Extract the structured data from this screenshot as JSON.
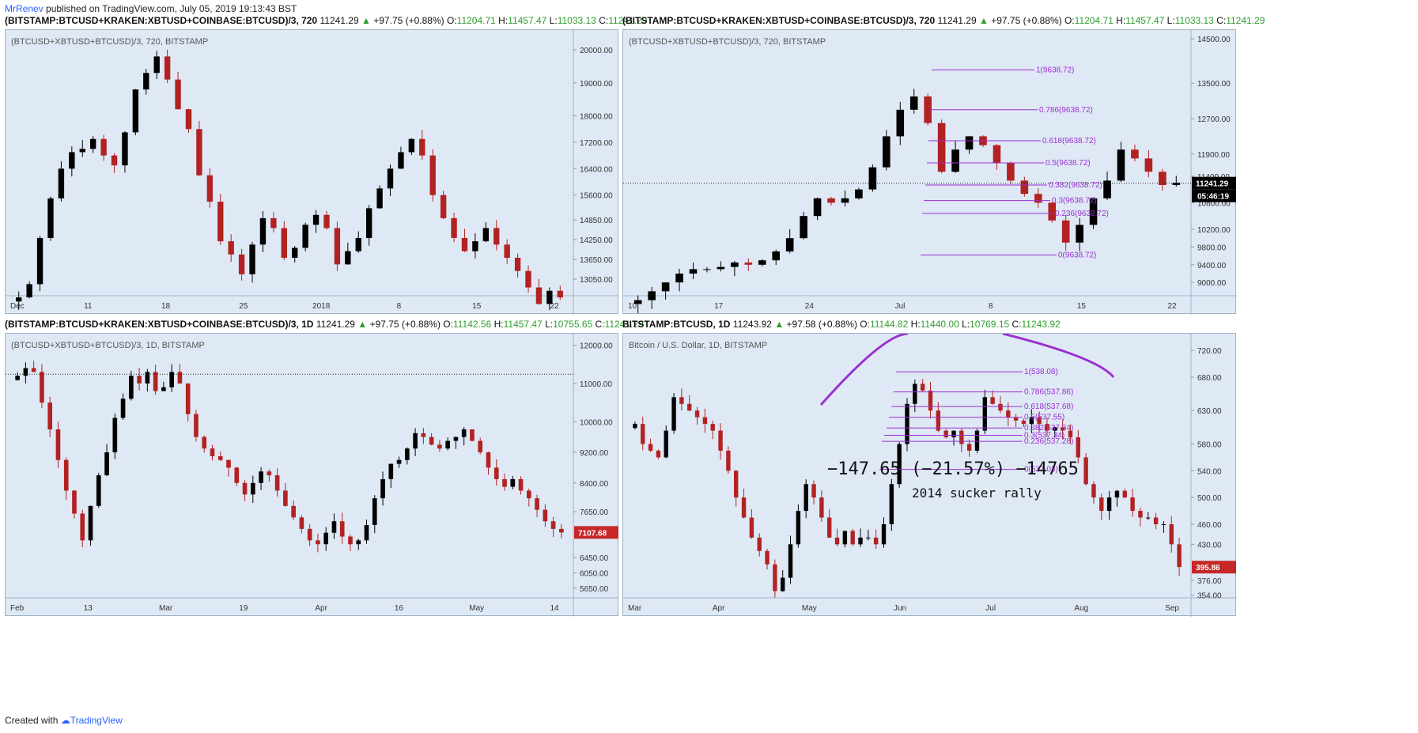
{
  "header": {
    "author": "MrRenev",
    "published": "published on TradingView.com, July 05, 2019 19:13:43 BST"
  },
  "footer": {
    "created_with": "Created with",
    "brand": "TradingView"
  },
  "colors": {
    "bg": "#dfe9f5",
    "up": "#000000",
    "down": "#b22222",
    "fib": "#9b30d0",
    "price_tag": "#000000",
    "price_tag_red": "#c62828",
    "ohlc_green": "#2e9e2e"
  },
  "panels": [
    {
      "symbol": "(BITSTAMP:BTCUSD+KRAKEN:XBTUSD+COINBASE:BTCUSD)/3, 720",
      "last": "11241.29",
      "change": "+97.75 (+0.88%)",
      "o": "11204.71",
      "h": "11457.47",
      "l": "11033.13",
      "c": "11241.29",
      "subtitle": "(BTCUSD+XBTUSD+BTCUSD)/3, 720, BITSTAMP"
    },
    {
      "symbol": "(BITSTAMP:BTCUSD+KRAKEN:XBTUSD+COINBASE:BTCUSD)/3, 720",
      "last": "11241.29",
      "change": "+97.75 (+0.88%)",
      "o": "11204.71",
      "h": "11457.47",
      "l": "11033.13",
      "c": "11241.29",
      "subtitle": "(BTCUSD+XBTUSD+BTCUSD)/3, 720, BITSTAMP",
      "price_tag": "11241.29",
      "countdown": "05:46:19"
    },
    {
      "symbol": "(BITSTAMP:BTCUSD+KRAKEN:XBTUSD+COINBASE:BTCUSD)/3, 1D",
      "last": "11241.29",
      "change": "+97.75 (+0.88%)",
      "o": "11142.56",
      "h": "11457.47",
      "l": "10755.65",
      "c": "11241.29",
      "subtitle": "(BTCUSD+XBTUSD+BTCUSD)/3, 1D, BITSTAMP",
      "price_tag": "7107.68"
    },
    {
      "symbol": "BITSTAMP:BTCUSD, 1D",
      "last": "11243.92",
      "change": "+97.58 (+0.88%)",
      "o": "11144.82",
      "h": "11440.00",
      "l": "10769.15",
      "c": "11243.92",
      "subtitle": "Bitcoin / U.S. Dollar, 1D, BITSTAMP",
      "price_tag": "395.86",
      "annotation_change": "−147.65 (−21.57%) −14765",
      "annotation_text": "2014 sucker rally"
    }
  ],
  "chart_data": [
    {
      "type": "candlestick",
      "ylim": [
        12550,
        20600
      ],
      "y_ticks": [
        "20000.00",
        "19000.00",
        "18000.00",
        "17200.00",
        "16400.00",
        "15600.00",
        "14850.00",
        "14250.00",
        "13650.00",
        "13050.00"
      ],
      "y_tick_values": [
        20000,
        19000,
        18000,
        17200,
        16400,
        15600,
        14850,
        14250,
        13650,
        13050
      ],
      "x_ticks": [
        "Dec",
        "11",
        "18",
        "25",
        "2018",
        "8",
        "15",
        "22"
      ],
      "series": [
        {
          "name": "",
          "values": [
            12500,
            12900,
            14300,
            15500,
            16400,
            16900,
            17000,
            17300,
            16800,
            16500,
            17500,
            18800,
            19300,
            19800,
            19100,
            18200,
            17600,
            16200,
            15400,
            14200,
            13800,
            13200,
            14100,
            14900,
            14600,
            13700,
            14000,
            14700,
            15000,
            14600,
            13500,
            13900,
            14300,
            15200,
            15800,
            16400,
            16900,
            17300,
            16800,
            15600,
            14900,
            14300,
            13900,
            14200,
            14600,
            14100,
            13700,
            13300,
            12800,
            12300,
            12700,
            12500
          ]
        }
      ]
    },
    {
      "type": "candlestick",
      "ylim": [
        8700,
        14700
      ],
      "y_ticks": [
        "14500.00",
        "13500.00",
        "12700.00",
        "11900.00",
        "11400.00",
        "10800.00",
        "10200.00",
        "9800.00",
        "9400.00",
        "9000.00"
      ],
      "y_tick_values": [
        14500,
        13500,
        12700,
        11900,
        11400,
        10800,
        10200,
        9800,
        9400,
        9000
      ],
      "x_ticks": [
        "10",
        "17",
        "24",
        "Jul",
        "8",
        "15",
        "22"
      ],
      "series": [
        {
          "name": "",
          "values": [
            8600,
            8800,
            9000,
            9200,
            9300,
            9300,
            9350,
            9450,
            9400,
            9500,
            9700,
            10000,
            10500,
            10900,
            10800,
            10900,
            11100,
            11600,
            12300,
            12900,
            13200,
            12600,
            11500,
            12000,
            12300,
            12100,
            11700,
            11300,
            11000,
            10800,
            10400,
            9900,
            10300,
            10900,
            11300,
            12000,
            11800,
            11500,
            11200,
            11250
          ]
        }
      ],
      "fib_levels": [
        {
          "label": "1(9638.72)",
          "value": 13800
        },
        {
          "label": "0.786(9638.72)",
          "value": 12900
        },
        {
          "label": "0.618(9638.72)",
          "value": 12200
        },
        {
          "label": "0.5(9638.72)",
          "value": 11700
        },
        {
          "label": "0.382(9638.72)",
          "value": 11200
        },
        {
          "label": "0.3(9638.72)",
          "value": 10850
        },
        {
          "label": "0.236(9638.72)",
          "value": 10560
        },
        {
          "label": "0(9638.72)",
          "value": 9620
        }
      ],
      "reference_line": 11241.29
    },
    {
      "type": "candlestick",
      "ylim": [
        5400,
        12300
      ],
      "y_ticks": [
        "12000.00",
        "11000.00",
        "10000.00",
        "9200.00",
        "8400.00",
        "7650.00",
        "6450.00",
        "6050.00",
        "5650.00"
      ],
      "y_tick_values": [
        12000,
        11000,
        10000,
        9200,
        8400,
        7650,
        6450,
        6050,
        5650
      ],
      "x_ticks": [
        "Feb",
        "13",
        "Mar",
        "19",
        "Apr",
        "16",
        "May",
        "14"
      ],
      "series": [
        {
          "name": "",
          "values": [
            11200,
            11400,
            11300,
            10500,
            9800,
            9000,
            8200,
            7600,
            6900,
            7800,
            8600,
            9200,
            10100,
            10600,
            11200,
            11000,
            11300,
            10800,
            10900,
            11300,
            11000,
            10200,
            9600,
            9300,
            9100,
            9000,
            8800,
            8400,
            8100,
            8400,
            8700,
            8600,
            8200,
            7800,
            7500,
            7200,
            6900,
            6800,
            7100,
            7400,
            7000,
            6800,
            6900,
            7300,
            8000,
            8500,
            8900,
            9000,
            9300,
            9700,
            9600,
            9400,
            9300,
            9500,
            9600,
            9800,
            9500,
            9200,
            8800,
            8500,
            8300,
            8500,
            8200,
            8000,
            7700,
            7400,
            7200,
            7107
          ]
        }
      ],
      "reference_line": 11241.29
    },
    {
      "type": "candlestick",
      "ylim": [
        350,
        745
      ],
      "y_ticks": [
        "720.00",
        "680.00",
        "630.00",
        "580.00",
        "540.00",
        "500.00",
        "460.00",
        "430.00",
        "376.00",
        "354.00"
      ],
      "y_tick_values": [
        720,
        680,
        630,
        580,
        540,
        500,
        460,
        430,
        376,
        354
      ],
      "x_ticks": [
        "Mar",
        "Apr",
        "May",
        "Jun",
        "Jul",
        "Aug",
        "Sep"
      ],
      "series": [
        {
          "name": "",
          "values": [
            610,
            580,
            570,
            560,
            600,
            650,
            640,
            630,
            620,
            610,
            600,
            570,
            540,
            500,
            470,
            440,
            420,
            400,
            360,
            380,
            430,
            480,
            520,
            500,
            470,
            440,
            430,
            450,
            430,
            440,
            440,
            430,
            460,
            520,
            580,
            640,
            670,
            660,
            630,
            600,
            590,
            600,
            580,
            570,
            600,
            650,
            640,
            630,
            620,
            615,
            610,
            620,
            610,
            600,
            605,
            600,
            590,
            560,
            520,
            500,
            480,
            500,
            510,
            500,
            480,
            470,
            470,
            460,
            460,
            430,
            396
          ]
        }
      ],
      "fib_levels": [
        {
          "label": "1(538.08)",
          "value": 688
        },
        {
          "label": "0.786(537.86)",
          "value": 658
        },
        {
          "label": "0.618(537.68)",
          "value": 636
        },
        {
          "label": "0.5(537.55)",
          "value": 620
        },
        {
          "label": "0.382(537.34)",
          "value": 604
        },
        {
          "label": "0.3(537.34)",
          "value": 593
        },
        {
          "label": "0.236(537.28)",
          "value": 584
        },
        {
          "label": "0(537.03)",
          "value": 542
        }
      ]
    }
  ]
}
